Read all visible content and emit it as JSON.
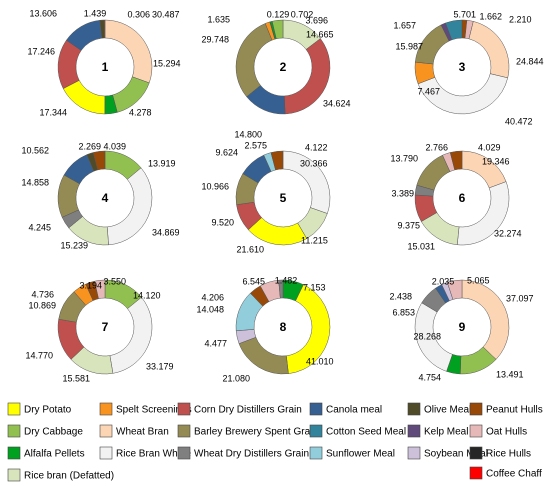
{
  "chart_data": {
    "type": "pie",
    "style": "donut",
    "colors": {
      "dry_potato": "#ffff00",
      "dry_cabbage": "#92c050",
      "alfalfa_pellets": "#00a020",
      "spelt_screenings": "#f7931e",
      "wheat_bran": "#fcd5b5",
      "rice_bran_whole": "#f2f2f2",
      "rice_bran_defatted": "#d8e4bc",
      "corn_ddg": "#c0504d",
      "barley_bsg": "#948a54",
      "wheat_ddg": "#7f7f7f",
      "canola_meal": "#376092",
      "cotton_seed_meal": "#31849b",
      "sunflower_meal": "#92cddc",
      "olive_meal": "#4f4a28",
      "kelp_meal": "#604a7b",
      "soybean_meal": "#ccc0da",
      "peanut_hulls": "#984807",
      "oat_hulls": "#e6b9b8",
      "rice_hulls": "#262626",
      "coffee_chaff": "#ff0000"
    },
    "legend": [
      {
        "key": "dry_potato",
        "label": "Dry Potato"
      },
      {
        "key": "spelt_screenings",
        "label": "Spelt Screenings"
      },
      {
        "key": "corn_ddg",
        "label": "Corn Dry Distillers Grain"
      },
      {
        "key": "canola_meal",
        "label": "Canola meal"
      },
      {
        "key": "olive_meal",
        "label": "Olive Meal"
      },
      {
        "key": "peanut_hulls",
        "label": "Peanut Hulls"
      },
      {
        "key": "dry_cabbage",
        "label": "Dry Cabbage"
      },
      {
        "key": "wheat_bran",
        "label": "Wheat Bran"
      },
      {
        "key": "barley_bsg",
        "label": "Barley Brewery Spent Grain"
      },
      {
        "key": "cotton_seed_meal",
        "label": "Cotton Seed Meal"
      },
      {
        "key": "kelp_meal",
        "label": "Kelp Meal"
      },
      {
        "key": "oat_hulls",
        "label": "Oat Hulls"
      },
      {
        "key": "alfalfa_pellets",
        "label": "Alfalfa Pellets"
      },
      {
        "key": "rice_bran_whole",
        "label": "Rice Bran Whole"
      },
      {
        "key": "wheat_ddg",
        "label": "Wheat Dry Distillers Grain"
      },
      {
        "key": "sunflower_meal",
        "label": "Sunflower Meal"
      },
      {
        "key": "soybean_meal",
        "label": "Soybean Meal"
      },
      {
        "key": "rice_hulls",
        "label": "Rice Hulls"
      },
      {
        "key": "rice_bran_defatted",
        "label": "Rice bran (Defatted)"
      },
      {
        "key": "coffee_chaff",
        "label": "Coffee Chaff"
      }
    ],
    "charts": [
      {
        "label": "1",
        "slices": [
          {
            "key": "wheat_bran",
            "value": 30.487
          },
          {
            "key": "dry_cabbage",
            "value": 15.294
          },
          {
            "key": "alfalfa_pellets",
            "value": 4.278
          },
          {
            "key": "dry_potato",
            "value": 17.344
          },
          {
            "key": "corn_ddg",
            "value": 17.246
          },
          {
            "key": "canola_meal",
            "value": 13.606
          },
          {
            "key": "olive_meal",
            "value": 1.439
          },
          {
            "key": "peanut_hulls",
            "value": 0.306
          }
        ]
      },
      {
        "label": "2",
        "slices": [
          {
            "key": "rice_bran_defatted",
            "value": 14.665
          },
          {
            "key": "corn_ddg",
            "value": 34.624
          },
          {
            "key": "canola_meal",
            "value": 14.8
          },
          {
            "key": "barley_bsg",
            "value": 29.748
          },
          {
            "key": "spelt_screenings",
            "value": 1.635
          },
          {
            "key": "coffee_chaff",
            "value": 0.129
          },
          {
            "key": "alfalfa_pellets",
            "value": 0.702
          },
          {
            "key": "dry_cabbage",
            "value": 3.696
          }
        ]
      },
      {
        "label": "3",
        "slices": [
          {
            "key": "peanut_hulls",
            "value": 1.662
          },
          {
            "key": "oat_hulls",
            "value": 2.21
          },
          {
            "key": "wheat_bran",
            "value": 24.844
          },
          {
            "key": "rice_bran_whole",
            "value": 40.472
          },
          {
            "key": "spelt_screenings",
            "value": 7.467
          },
          {
            "key": "barley_bsg",
            "value": 15.987
          },
          {
            "key": "kelp_meal",
            "value": 1.657
          },
          {
            "key": "cotton_seed_meal",
            "value": 5.701
          }
        ]
      },
      {
        "label": "4",
        "slices": [
          {
            "key": "dry_cabbage",
            "value": 13.919
          },
          {
            "key": "rice_bran_whole",
            "value": 34.869
          },
          {
            "key": "rice_bran_defatted",
            "value": 15.239
          },
          {
            "key": "wheat_ddg",
            "value": 4.245
          },
          {
            "key": "barley_bsg",
            "value": 14.858
          },
          {
            "key": "canola_meal",
            "value": 10.562
          },
          {
            "key": "olive_meal",
            "value": 2.269
          },
          {
            "key": "peanut_hulls",
            "value": 4.039
          }
        ]
      },
      {
        "label": "5",
        "slices": [
          {
            "key": "rice_bran_whole",
            "value": 30.366
          },
          {
            "key": "rice_bran_defatted",
            "value": 11.215
          },
          {
            "key": "dry_potato",
            "value": 21.61
          },
          {
            "key": "corn_ddg",
            "value": 9.52
          },
          {
            "key": "barley_bsg",
            "value": 10.966
          },
          {
            "key": "canola_meal",
            "value": 9.624
          },
          {
            "key": "sunflower_meal",
            "value": 2.575
          },
          {
            "key": "peanut_hulls",
            "value": 4.122
          }
        ]
      },
      {
        "label": "6",
        "slices": [
          {
            "key": "wheat_bran",
            "value": 19.346
          },
          {
            "key": "rice_bran_whole",
            "value": 32.274
          },
          {
            "key": "rice_bran_defatted",
            "value": 15.031
          },
          {
            "key": "corn_ddg",
            "value": 9.375
          },
          {
            "key": "wheat_ddg",
            "value": 3.389
          },
          {
            "key": "barley_bsg",
            "value": 13.79
          },
          {
            "key": "oat_hulls",
            "value": 2.766
          },
          {
            "key": "peanut_hulls",
            "value": 4.029
          }
        ]
      },
      {
        "label": "7",
        "slices": [
          {
            "key": "dry_cabbage",
            "value": 14.12
          },
          {
            "key": "rice_bran_whole",
            "value": 33.179
          },
          {
            "key": "rice_bran_defatted",
            "value": 15.581
          },
          {
            "key": "corn_ddg",
            "value": 14.77
          },
          {
            "key": "barley_bsg",
            "value": 10.869
          },
          {
            "key": "spelt_screenings",
            "value": 4.736
          },
          {
            "key": "peanut_hulls",
            "value": 3.194
          },
          {
            "key": "oat_hulls",
            "value": 3.55
          }
        ]
      },
      {
        "label": "8",
        "slices": [
          {
            "key": "alfalfa_pellets",
            "value": 7.153
          },
          {
            "key": "dry_potato",
            "value": 41.01
          },
          {
            "key": "barley_bsg",
            "value": 21.08
          },
          {
            "key": "soybean_meal",
            "value": 4.477
          },
          {
            "key": "sunflower_meal",
            "value": 14.048
          },
          {
            "key": "peanut_hulls",
            "value": 4.206
          },
          {
            "key": "oat_hulls",
            "value": 6.545
          },
          {
            "key": "wheat_ddg",
            "value": 1.482
          }
        ]
      },
      {
        "label": "9",
        "slices": [
          {
            "key": "wheat_bran",
            "value": 37.097
          },
          {
            "key": "dry_cabbage",
            "value": 13.491
          },
          {
            "key": "alfalfa_pellets",
            "value": 4.754
          },
          {
            "key": "rice_bran_whole",
            "value": 28.268
          },
          {
            "key": "wheat_ddg",
            "value": 6.853
          },
          {
            "key": "canola_meal",
            "value": 2.438
          },
          {
            "key": "soybean_meal",
            "value": 2.035
          },
          {
            "key": "oat_hulls",
            "value": 5.065
          }
        ]
      }
    ]
  }
}
